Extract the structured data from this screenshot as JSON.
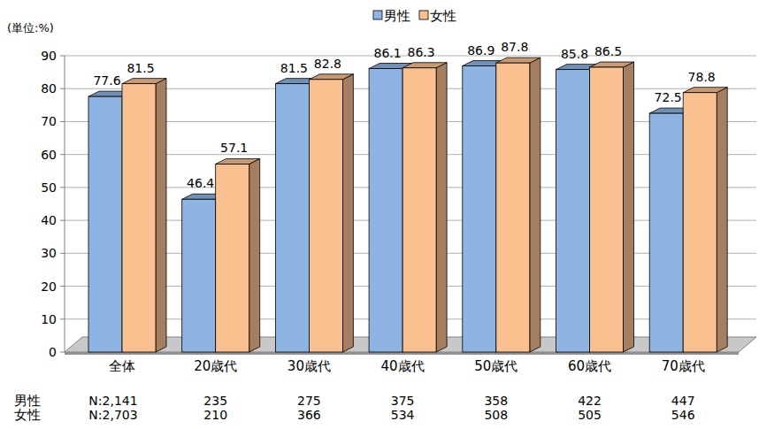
{
  "chart_data": {
    "type": "bar",
    "y_label": "(単位:%)",
    "categories": [
      "全体",
      "20歳代",
      "30歳代",
      "40歳代",
      "50歳代",
      "60歳代",
      "70歳代"
    ],
    "series": [
      {
        "name": "男性",
        "color": "#8db4e2",
        "values": [
          77.6,
          46.4,
          81.5,
          86.1,
          86.9,
          85.8,
          72.5
        ],
        "n_labels": [
          "N:2,141",
          "235",
          "275",
          "375",
          "358",
          "422",
          "447"
        ]
      },
      {
        "name": "女性",
        "color": "#fac090",
        "values": [
          81.5,
          57.1,
          82.8,
          86.3,
          87.8,
          86.5,
          78.8
        ],
        "n_labels": [
          "N:2,703",
          "210",
          "366",
          "534",
          "508",
          "505",
          "546"
        ]
      }
    ],
    "ylim": [
      0,
      90
    ],
    "yticks": [
      0,
      10,
      20,
      30,
      40,
      50,
      60,
      70,
      80,
      90
    ],
    "grid": true,
    "legend": "top",
    "data_labels": true
  }
}
